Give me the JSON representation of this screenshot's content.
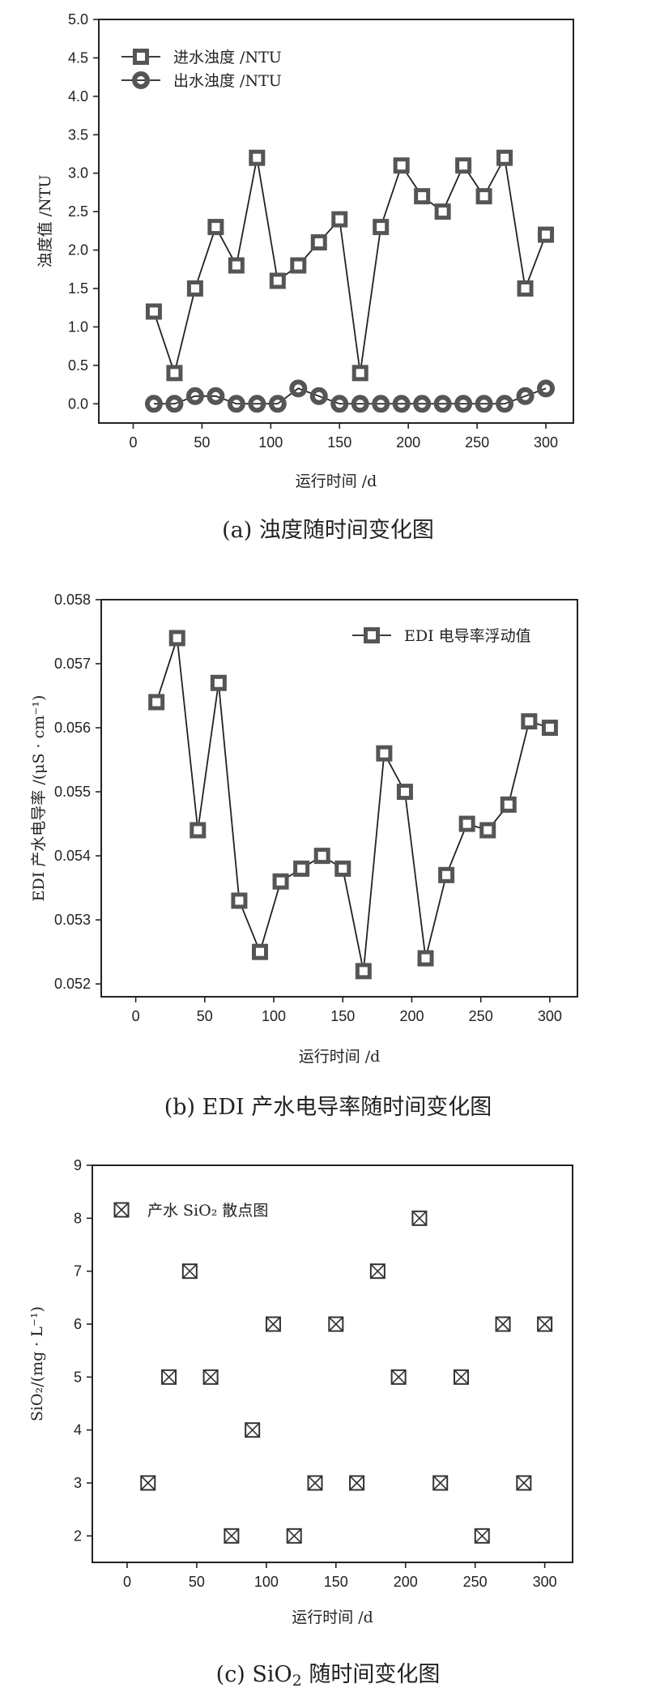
{
  "chart_data": [
    {
      "type": "line",
      "xlabel": "运行时间 /d",
      "ylabel": "浊度值 /NTU",
      "caption": "(a)  浊度随时间变化图",
      "xlim": [
        -25,
        320
      ],
      "ylim": [
        -0.25,
        5.0
      ],
      "xticks": [
        0,
        50,
        100,
        150,
        200,
        250,
        300
      ],
      "yticks": [
        0.0,
        0.5,
        1.0,
        1.5,
        2.0,
        2.5,
        3.0,
        3.5,
        4.0,
        4.5,
        5.0
      ],
      "ytick_decimals": 1,
      "legend": "top-left",
      "x": [
        15,
        30,
        45,
        60,
        75,
        90,
        105,
        120,
        135,
        150,
        165,
        180,
        195,
        210,
        225,
        240,
        255,
        270,
        285,
        300
      ],
      "series": [
        {
          "name": "进水浊度 /NTU",
          "marker": "square",
          "values": [
            1.2,
            0.4,
            1.5,
            2.3,
            1.8,
            3.2,
            1.6,
            1.8,
            2.1,
            2.4,
            0.4,
            2.3,
            3.1,
            2.7,
            2.5,
            3.1,
            2.7,
            3.2,
            1.5,
            2.2
          ]
        },
        {
          "name": "出水浊度 /NTU",
          "marker": "circle",
          "values": [
            0.0,
            0.0,
            0.1,
            0.1,
            0.0,
            0.0,
            0.0,
            0.2,
            0.1,
            0.0,
            0.0,
            0.0,
            0.0,
            0.0,
            0.0,
            0.0,
            0.0,
            0.0,
            0.1,
            0.2
          ]
        }
      ]
    },
    {
      "type": "line",
      "xlabel": "运行时间 /d",
      "ylabel": "EDI 产水电导率 /(μS · cm⁻¹)",
      "caption": "(b)  EDI 产水电导率随时间变化图",
      "xlim": [
        -25,
        320
      ],
      "ylim": [
        0.0518,
        0.058
      ],
      "xticks": [
        0,
        50,
        100,
        150,
        200,
        250,
        300
      ],
      "yticks": [
        0.052,
        0.053,
        0.054,
        0.055,
        0.056,
        0.057,
        0.058
      ],
      "ytick_decimals": 3,
      "legend": "top-right",
      "x": [
        15,
        30,
        45,
        60,
        75,
        90,
        105,
        120,
        135,
        150,
        165,
        180,
        195,
        210,
        225,
        240,
        255,
        270,
        285,
        300
      ],
      "series": [
        {
          "name": "EDI 电导率浮动值",
          "marker": "square",
          "values": [
            0.0564,
            0.0574,
            0.0544,
            0.0567,
            0.0533,
            0.0525,
            0.0536,
            0.0538,
            0.054,
            0.0538,
            0.0522,
            0.0556,
            0.055,
            0.0524,
            0.0537,
            0.0545,
            0.0544,
            0.0548,
            0.0561,
            0.056
          ]
        }
      ]
    },
    {
      "type": "scatter",
      "xlabel": "运行时间 /d",
      "ylabel": "SiO₂/(mg · L⁻¹)",
      "caption_prefix": "(c)  SiO",
      "caption_sub": "2",
      "caption_suffix": " 随时间变化图",
      "xlim": [
        -25,
        320
      ],
      "ylim": [
        1.5,
        9.0
      ],
      "xticks": [
        0,
        50,
        100,
        150,
        200,
        250,
        300
      ],
      "yticks": [
        2,
        3,
        4,
        5,
        6,
        7,
        8,
        9
      ],
      "ytick_decimals": 0,
      "legend": "top-left",
      "x": [
        15,
        30,
        45,
        60,
        75,
        90,
        105,
        120,
        135,
        150,
        165,
        180,
        195,
        210,
        225,
        240,
        255,
        270,
        285,
        300
      ],
      "series": [
        {
          "name": "产水 SiO₂ 散点图",
          "marker": "boxx",
          "values": [
            3,
            5,
            7,
            5,
            2,
            4,
            6,
            2,
            3,
            6,
            3,
            7,
            5,
            8,
            3,
            5,
            2,
            6,
            3,
            6
          ]
        }
      ]
    }
  ]
}
